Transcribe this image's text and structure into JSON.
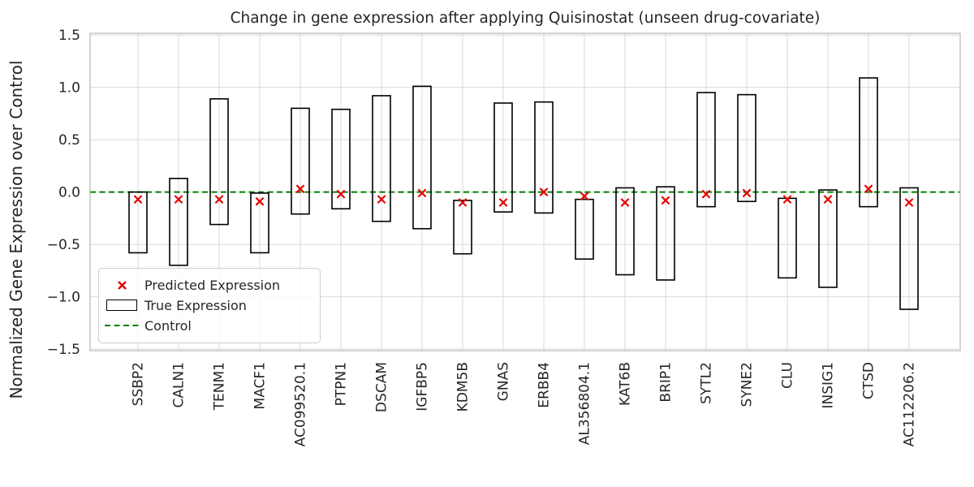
{
  "chart_data": {
    "type": "bar",
    "subtype": "floating-range-bars-with-x-point-markers",
    "title": "Change in gene expression after applying Quisinostat (unseen drug-covariate)",
    "xlabel": "",
    "ylabel": "Normalized Gene Expression over Control",
    "categories": [
      "SSBP2",
      "CALN1",
      "TENM1",
      "MACF1",
      "AC099520.1",
      "PTPN1",
      "DSCAM",
      "IGFBP5",
      "KDM5B",
      "GNAS",
      "ERBB4",
      "AL356804.1",
      "KAT6B",
      "BRIP1",
      "SYTL2",
      "SYNE2",
      "CLU",
      "INSIG1",
      "CTSD",
      "AC112206.2"
    ],
    "series": [
      {
        "name": "True Expression",
        "type": "range-bar",
        "low": [
          -0.58,
          -0.7,
          -0.31,
          -0.58,
          -0.21,
          -0.16,
          -0.28,
          -0.35,
          -0.59,
          -0.19,
          -0.2,
          -0.64,
          -0.79,
          -0.84,
          -0.14,
          -0.09,
          -0.82,
          -0.91,
          -0.14,
          -1.12
        ],
        "high": [
          0.0,
          0.13,
          0.89,
          -0.01,
          0.8,
          0.79,
          0.92,
          1.01,
          -0.08,
          0.85,
          0.86,
          -0.07,
          0.04,
          0.05,
          0.95,
          0.93,
          -0.06,
          0.02,
          1.09,
          0.04
        ]
      },
      {
        "name": "Predicted Expression",
        "type": "scatter",
        "marker": "x",
        "values": [
          -0.07,
          -0.07,
          -0.07,
          -0.09,
          0.03,
          -0.02,
          -0.07,
          -0.01,
          -0.1,
          -0.1,
          0.0,
          -0.04,
          -0.1,
          -0.08,
          -0.02,
          -0.01,
          -0.07,
          -0.07,
          0.03,
          -0.1
        ]
      },
      {
        "name": "Control",
        "type": "hline",
        "value": 0.0,
        "style": "dashed"
      }
    ],
    "ylim": [
      -1.5,
      1.5
    ],
    "yticks": [
      -1.5,
      -1.0,
      -0.5,
      0.0,
      0.5,
      1.0,
      1.5
    ],
    "grid": true,
    "legend": {
      "position": "lower left",
      "items": [
        {
          "label": "Predicted Expression",
          "marker": "red-x"
        },
        {
          "label": "True Expression",
          "marker": "open-box"
        },
        {
          "label": "Control",
          "marker": "green-dashed-line"
        }
      ]
    },
    "colors": {
      "predicted_marker": "#e60000",
      "control_line": "#008000",
      "bar_outline": "#000000",
      "grid": "#d9d9d9",
      "spine": "#bdbdbd",
      "text": "#262626"
    }
  }
}
